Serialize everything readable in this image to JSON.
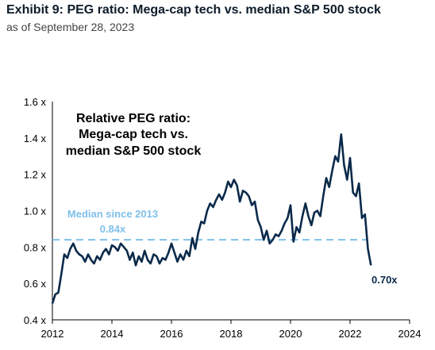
{
  "header": {
    "title": "Exhibit 9: PEG ratio: Mega-cap tech vs. median S&P 500 stock",
    "subtitle": "as of September 28, 2023"
  },
  "colors": {
    "series": "#0b2a4a",
    "median": "#7fc0ea"
  },
  "chart_data": {
    "type": "line",
    "inner_title": [
      "Relative PEG ratio:",
      "Mega-cap tech vs.",
      "median S&P 500 stock"
    ],
    "xlim": [
      2012,
      2024
    ],
    "ylim": [
      0.4,
      1.6
    ],
    "xticks": [
      2012,
      2014,
      2016,
      2018,
      2020,
      2022,
      2024
    ],
    "yticks": [
      0.4,
      0.6,
      0.8,
      1.0,
      1.2,
      1.4,
      1.6
    ],
    "ytick_labels": [
      "0.4 x",
      "0.6 x",
      "0.8 x",
      "1.0 x",
      "1.2 x",
      "1.4 x",
      "1.6 x"
    ],
    "median": {
      "value": 0.84,
      "label": "Median since 2013",
      "value_label": "0.84x"
    },
    "end_label": "0.70x",
    "series": [
      {
        "x": [
          2012.0,
          2012.1,
          2012.2,
          2012.3,
          2012.4,
          2012.5,
          2012.6,
          2012.7,
          2012.8,
          2012.9,
          2013.0,
          2013.1,
          2013.2,
          2013.3,
          2013.4,
          2013.5,
          2013.6,
          2013.7,
          2013.8,
          2013.9,
          2014.0,
          2014.1,
          2014.2,
          2014.3,
          2014.4,
          2014.5,
          2014.6,
          2014.7,
          2014.8,
          2014.9,
          2015.0,
          2015.1,
          2015.2,
          2015.3,
          2015.4,
          2015.5,
          2015.6,
          2015.7,
          2015.8,
          2015.9,
          2016.0,
          2016.1,
          2016.2,
          2016.3,
          2016.4,
          2016.5,
          2016.6,
          2016.7,
          2016.8,
          2016.9,
          2017.0,
          2017.1,
          2017.2,
          2017.3,
          2017.4,
          2017.5,
          2017.6,
          2017.7,
          2017.8,
          2017.9,
          2018.0,
          2018.1,
          2018.2,
          2018.3,
          2018.4,
          2018.5,
          2018.6,
          2018.7,
          2018.8,
          2018.9,
          2019.0,
          2019.1,
          2019.2,
          2019.3,
          2019.4,
          2019.5,
          2019.6,
          2019.7,
          2019.8,
          2019.9,
          2020.0,
          2020.1,
          2020.2,
          2020.3,
          2020.4,
          2020.5,
          2020.6,
          2020.7,
          2020.8,
          2020.9,
          2021.0,
          2021.1,
          2021.2,
          2021.3,
          2021.4,
          2021.5,
          2021.6,
          2021.7,
          2021.8,
          2021.9,
          2022.0,
          2022.1,
          2022.2,
          2022.3,
          2022.4,
          2022.5,
          2022.6,
          2022.7
        ],
        "values": [
          0.49,
          0.54,
          0.55,
          0.65,
          0.76,
          0.74,
          0.79,
          0.82,
          0.78,
          0.76,
          0.75,
          0.72,
          0.76,
          0.73,
          0.71,
          0.75,
          0.73,
          0.77,
          0.79,
          0.76,
          0.81,
          0.8,
          0.78,
          0.82,
          0.8,
          0.78,
          0.73,
          0.77,
          0.7,
          0.75,
          0.72,
          0.78,
          0.73,
          0.71,
          0.76,
          0.75,
          0.71,
          0.74,
          0.73,
          0.77,
          0.82,
          0.77,
          0.72,
          0.76,
          0.73,
          0.78,
          0.75,
          0.85,
          0.79,
          0.88,
          0.94,
          0.93,
          1.0,
          1.04,
          1.02,
          1.06,
          1.09,
          1.06,
          1.1,
          1.16,
          1.13,
          1.17,
          1.14,
          1.05,
          1.11,
          1.1,
          1.08,
          1.03,
          1.05,
          0.95,
          0.91,
          0.84,
          0.89,
          0.82,
          0.84,
          0.87,
          0.86,
          0.89,
          0.93,
          0.96,
          1.03,
          0.83,
          0.91,
          0.88,
          0.97,
          1.04,
          0.97,
          0.92,
          0.99,
          1.0,
          0.97,
          1.08,
          1.18,
          1.13,
          1.22,
          1.3,
          1.27,
          1.42,
          1.25,
          1.17,
          1.29,
          1.1,
          1.08,
          1.15,
          0.96,
          0.98,
          0.79,
          0.7
        ]
      }
    ]
  }
}
